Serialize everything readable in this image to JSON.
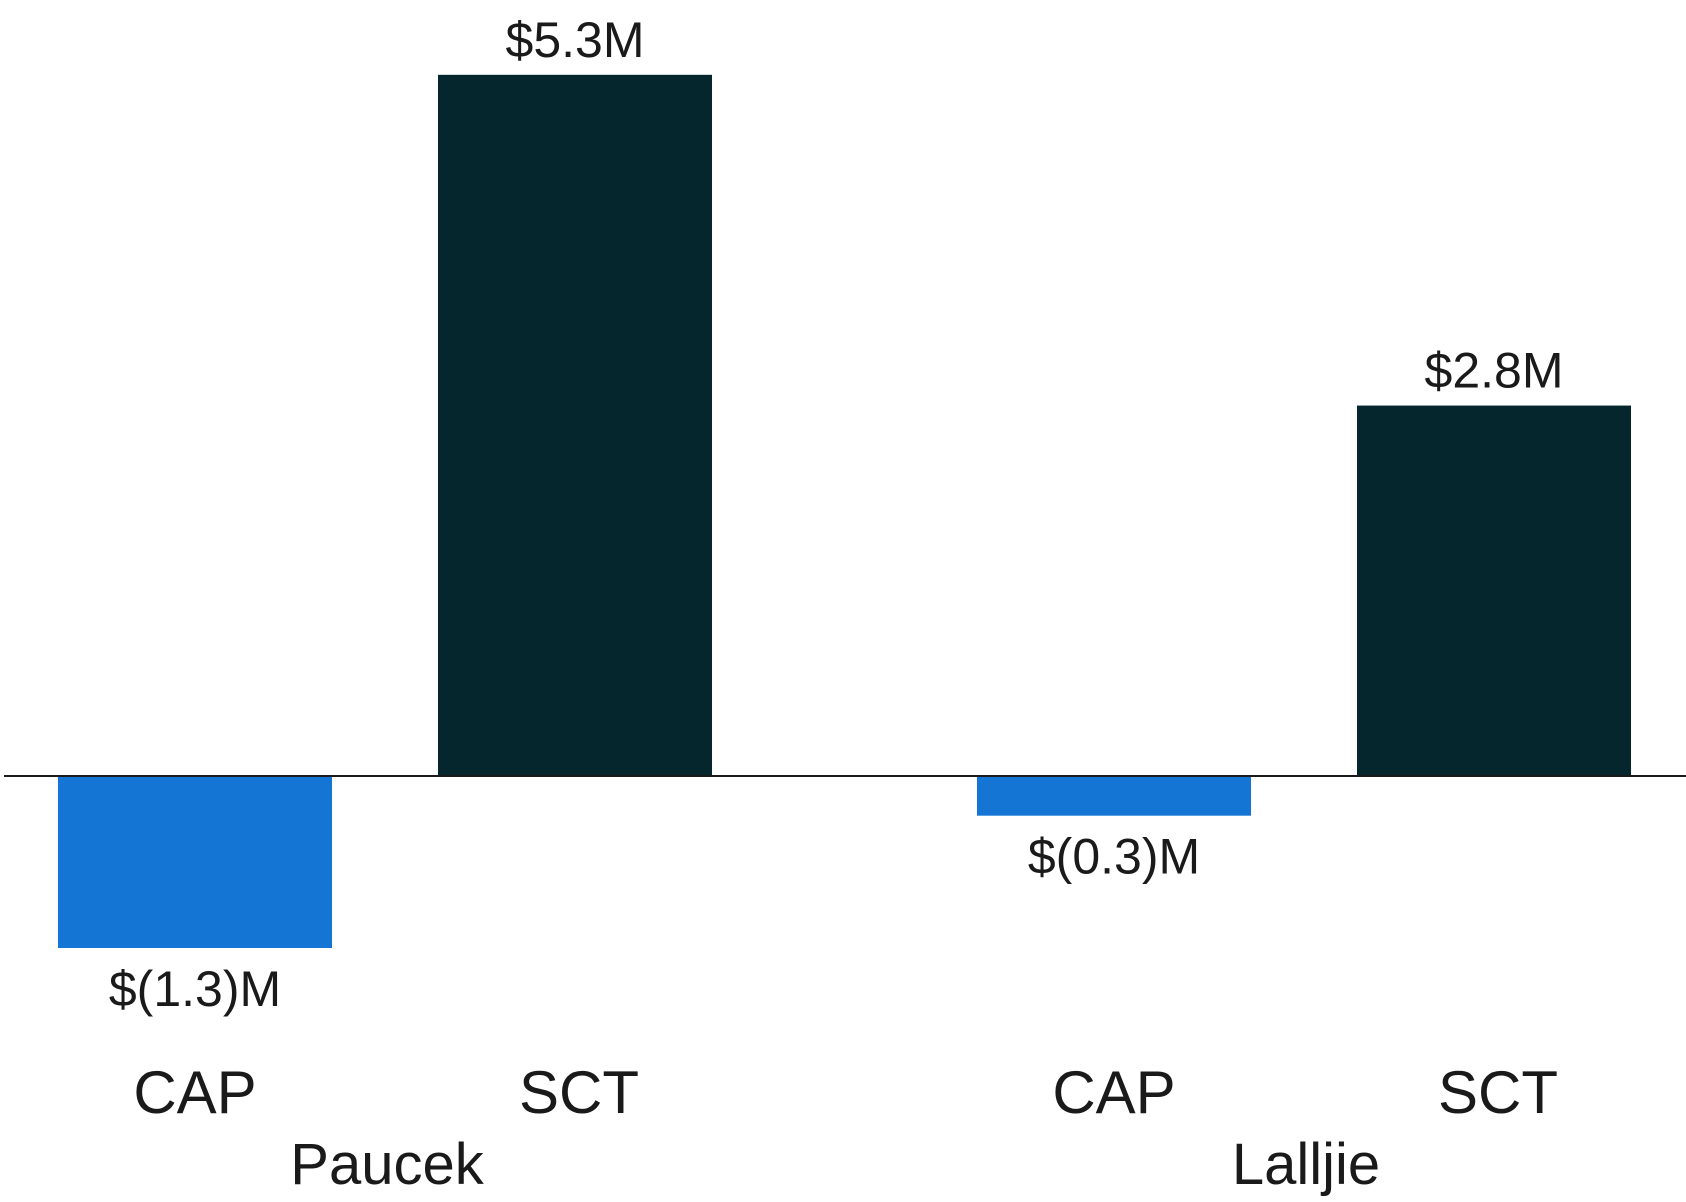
{
  "chart_data": {
    "type": "bar",
    "title": "",
    "xlabel": "",
    "ylabel": "",
    "ylim": [
      -1.3,
      5.3
    ],
    "groups": [
      {
        "name": "Paucek",
        "bars": [
          {
            "category": "CAP",
            "value": -1.3,
            "label": "$(1.3)M",
            "color": "#1475d4"
          },
          {
            "category": "SCT",
            "value": 5.3,
            "label": "$5.3M",
            "color": "#04262c"
          }
        ]
      },
      {
        "name": "Lalljie",
        "bars": [
          {
            "category": "CAP",
            "value": -0.3,
            "label": "$(0.3)M",
            "color": "#1475d4"
          },
          {
            "category": "SCT",
            "value": 2.8,
            "label": "$2.8M",
            "color": "#04262c"
          }
        ]
      }
    ],
    "baseline_color": "#1a1a1a",
    "grid": false,
    "legend": "none"
  }
}
